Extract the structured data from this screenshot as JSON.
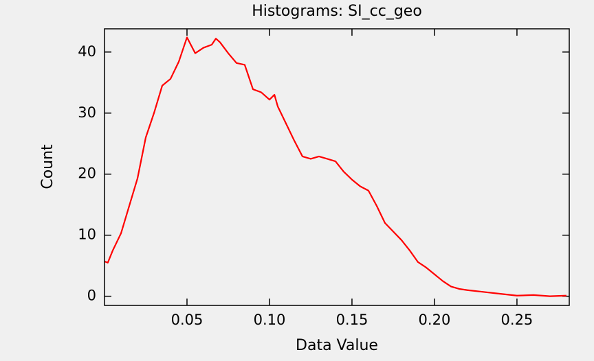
{
  "chart_data": {
    "type": "line",
    "title": "Histograms: SI_cc_geo",
    "x_label": "Data Value",
    "y_label": "Count",
    "x": [
      0.0,
      0.002,
      0.005,
      0.01,
      0.015,
      0.02,
      0.025,
      0.03,
      0.035,
      0.04,
      0.045,
      0.05,
      0.055,
      0.06,
      0.065,
      0.0675,
      0.07,
      0.075,
      0.08,
      0.085,
      0.09,
      0.095,
      0.1,
      0.103,
      0.105,
      0.11,
      0.115,
      0.12,
      0.125,
      0.13,
      0.135,
      0.14,
      0.145,
      0.15,
      0.155,
      0.16,
      0.165,
      0.17,
      0.175,
      0.18,
      0.185,
      0.19,
      0.195,
      0.2,
      0.205,
      0.21,
      0.215,
      0.22,
      0.23,
      0.24,
      0.25,
      0.26,
      0.27,
      0.28
    ],
    "series": [
      {
        "color": "#ff0000",
        "values": [
          5.7,
          5.5,
          7.5,
          10.3,
          14.8,
          19.3,
          26,
          30,
          34.5,
          35.6,
          38.4,
          42.4,
          39.8,
          40.7,
          41.2,
          42.2,
          41.6,
          39.8,
          38.2,
          37.9,
          33.9,
          33.4,
          32.2,
          33,
          31.1,
          28.3,
          25.5,
          22.9,
          22.5,
          22.9,
          22.5,
          22.1,
          20.4,
          19.1,
          18,
          17.3,
          14.8,
          12,
          10.6,
          9.2,
          7.5,
          5.6,
          4.7,
          3.6,
          2.5,
          1.6,
          1.2,
          1.0,
          0.7,
          0.4,
          0.1,
          0.2,
          0,
          0.1
        ]
      }
    ],
    "xlim": [
      0,
      0.2817
    ],
    "ylim": [
      -1.5,
      43.8
    ],
    "xticks": [
      0.05,
      {
        "value": 0.1,
        "label": "0.10"
      },
      0.15,
      {
        "value": 0.2,
        "label": "0.20"
      },
      0.25
    ],
    "yticks": [
      0,
      10,
      20,
      30,
      40
    ]
  }
}
